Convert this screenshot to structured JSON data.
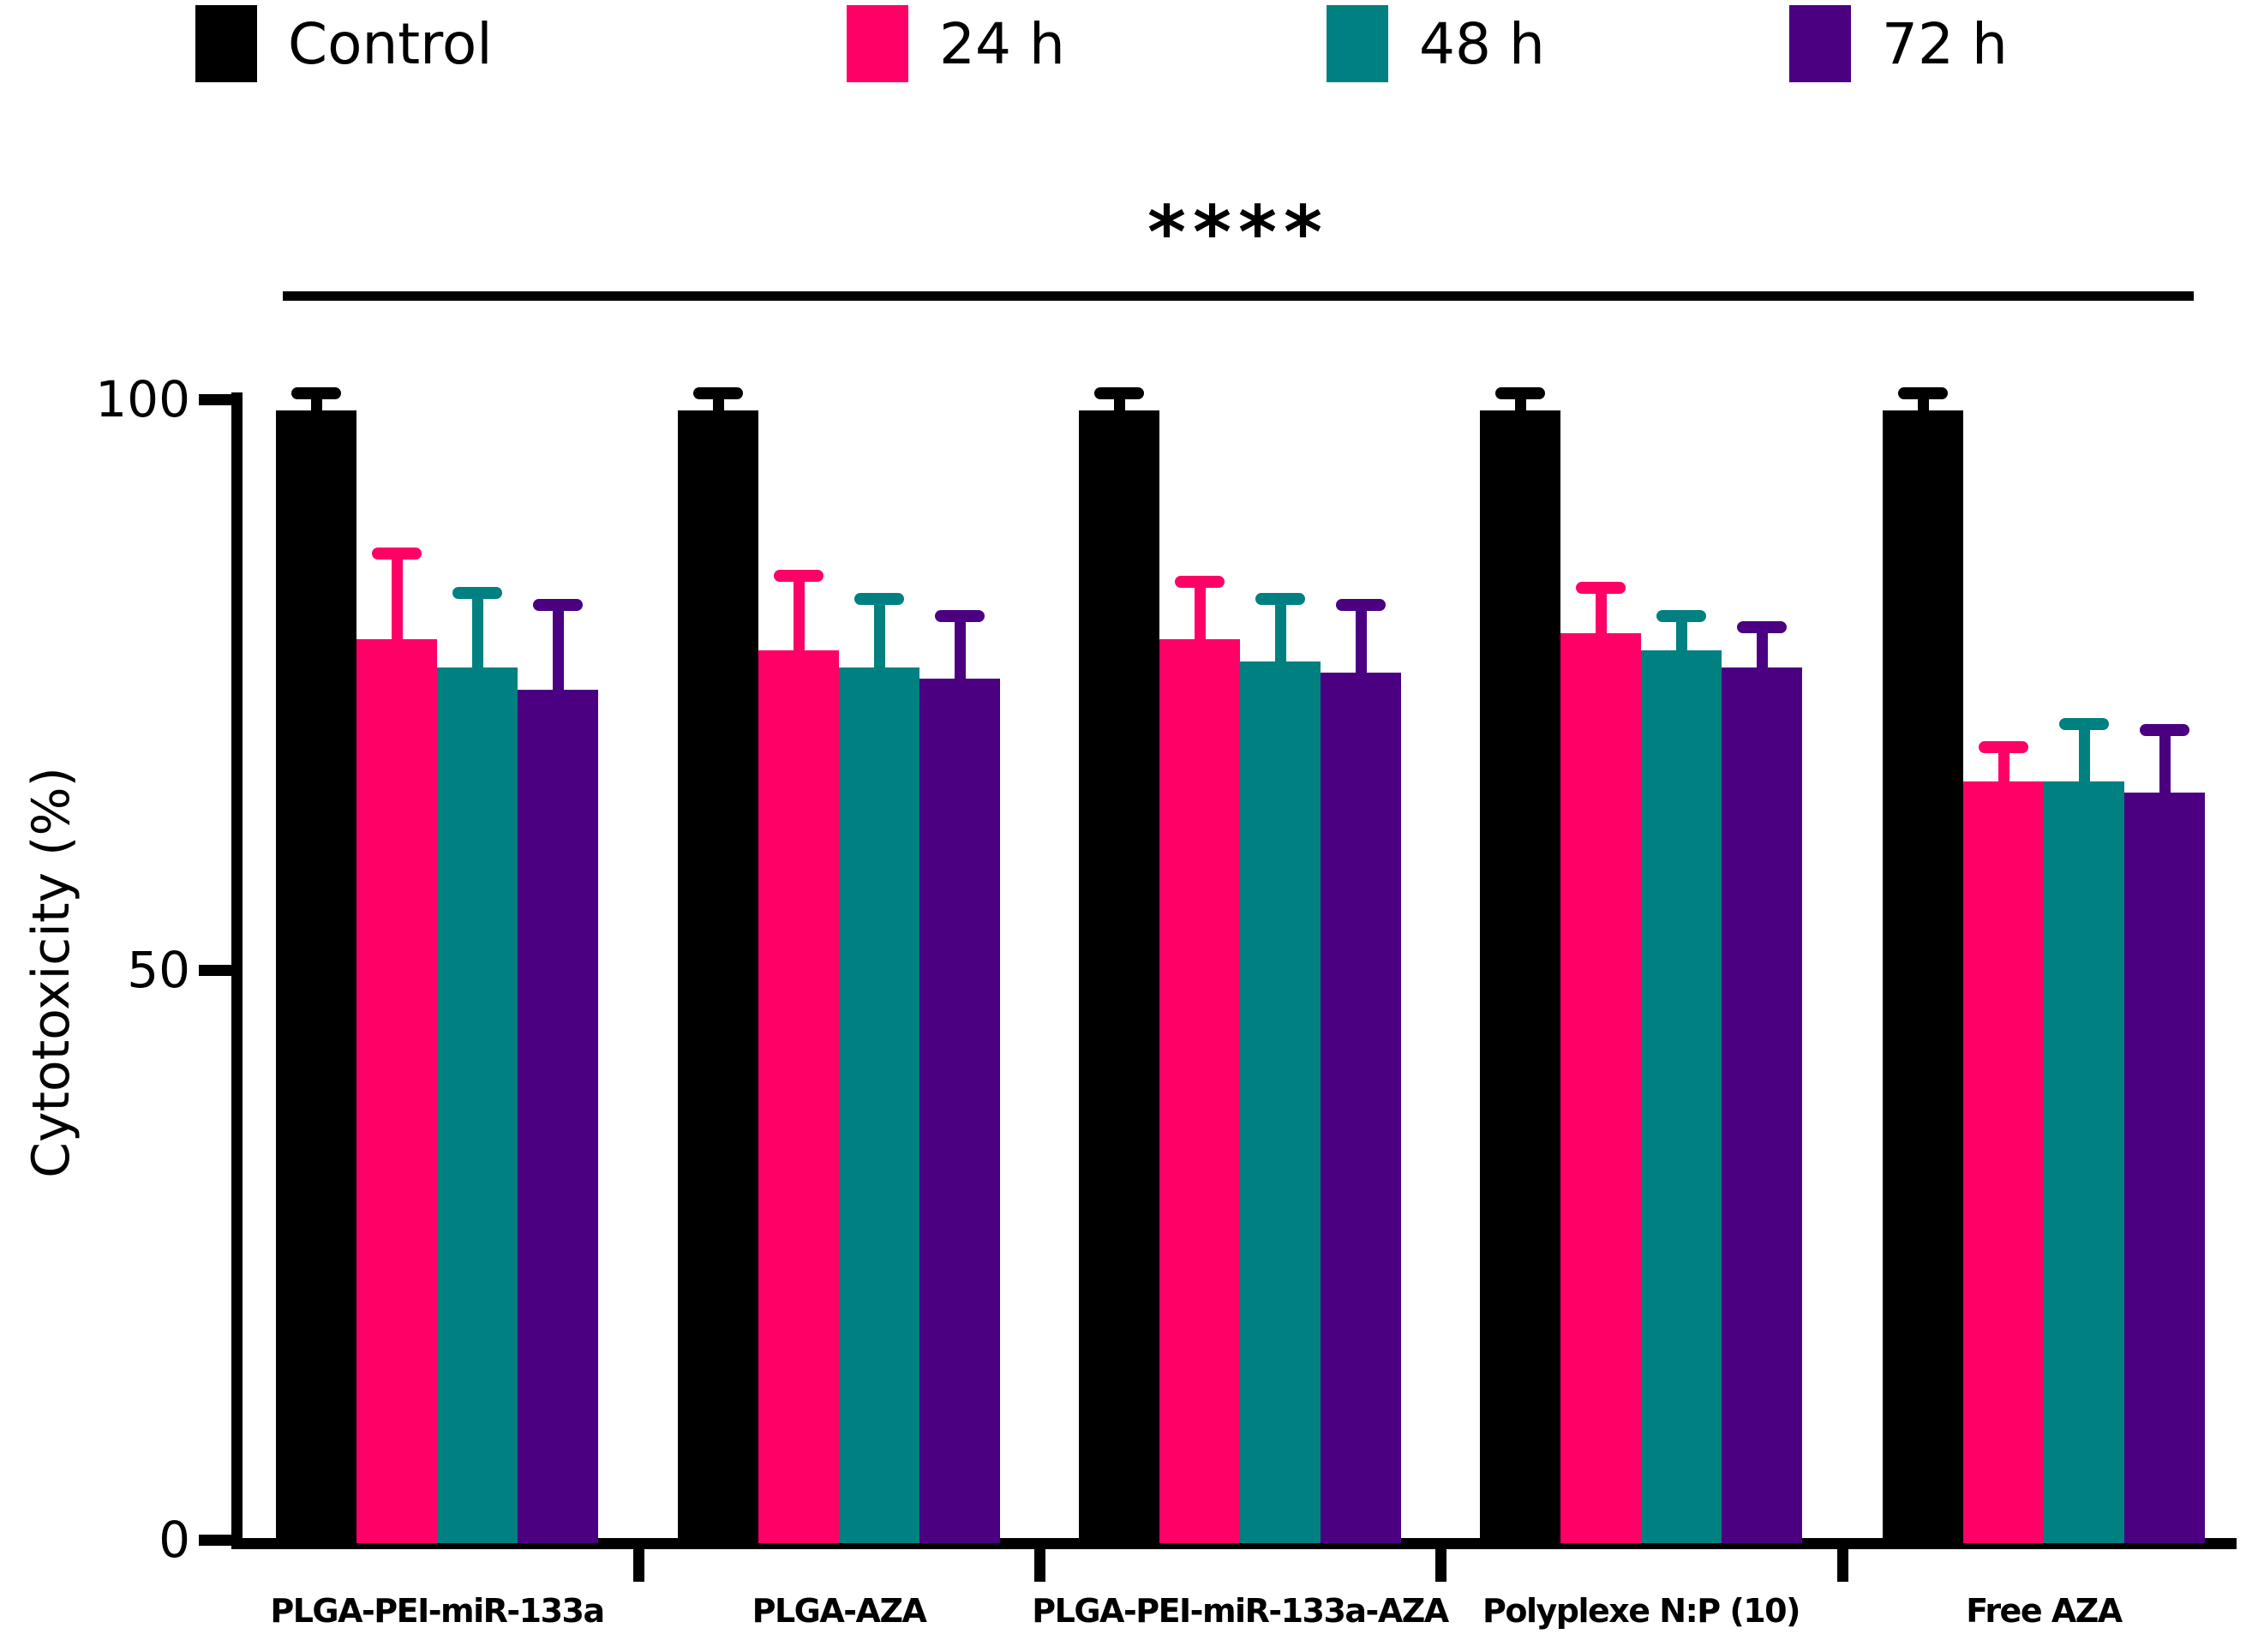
{
  "figure": {
    "background": "#FFFFFF"
  },
  "significance": {
    "stars": "****"
  },
  "chart_data": {
    "type": "bar",
    "title": "",
    "xlabel": "",
    "ylabel": "Cytotoxicity (%)",
    "ylim": [
      0,
      100
    ],
    "yticks": [
      0,
      50,
      100
    ],
    "grid": false,
    "legend_position": "top",
    "categories": [
      "PLGA-PEI-miR-133a",
      "PLGA-AZA",
      "PLGA-PEI-miR-133a-AZA",
      "Polyplexe N:P (10)",
      "Free AZA"
    ],
    "series": [
      {
        "name": "Control",
        "color": "#000000",
        "values": [
          99,
          99,
          99,
          99,
          99
        ],
        "errors": [
          1.5,
          1.5,
          1.5,
          1.5,
          1.5
        ]
      },
      {
        "name": "24 h",
        "color": "#FF0066",
        "values": [
          79,
          78,
          79,
          79.5,
          66.5
        ],
        "errors": [
          7.5,
          6.5,
          5,
          4,
          3
        ]
      },
      {
        "name": "48 h",
        "color": "#008080",
        "values": [
          76.5,
          76.5,
          77,
          78,
          66.5
        ],
        "errors": [
          6.5,
          6,
          5.5,
          3,
          5
        ]
      },
      {
        "name": "72 h",
        "color": "#4B0082",
        "values": [
          74.5,
          75.5,
          76,
          76.5,
          65.5
        ],
        "errors": [
          7.5,
          5.5,
          6,
          3.5,
          5.5
        ]
      }
    ],
    "annotation": {
      "text": "****",
      "applies_to": "all categories vs Control"
    }
  }
}
